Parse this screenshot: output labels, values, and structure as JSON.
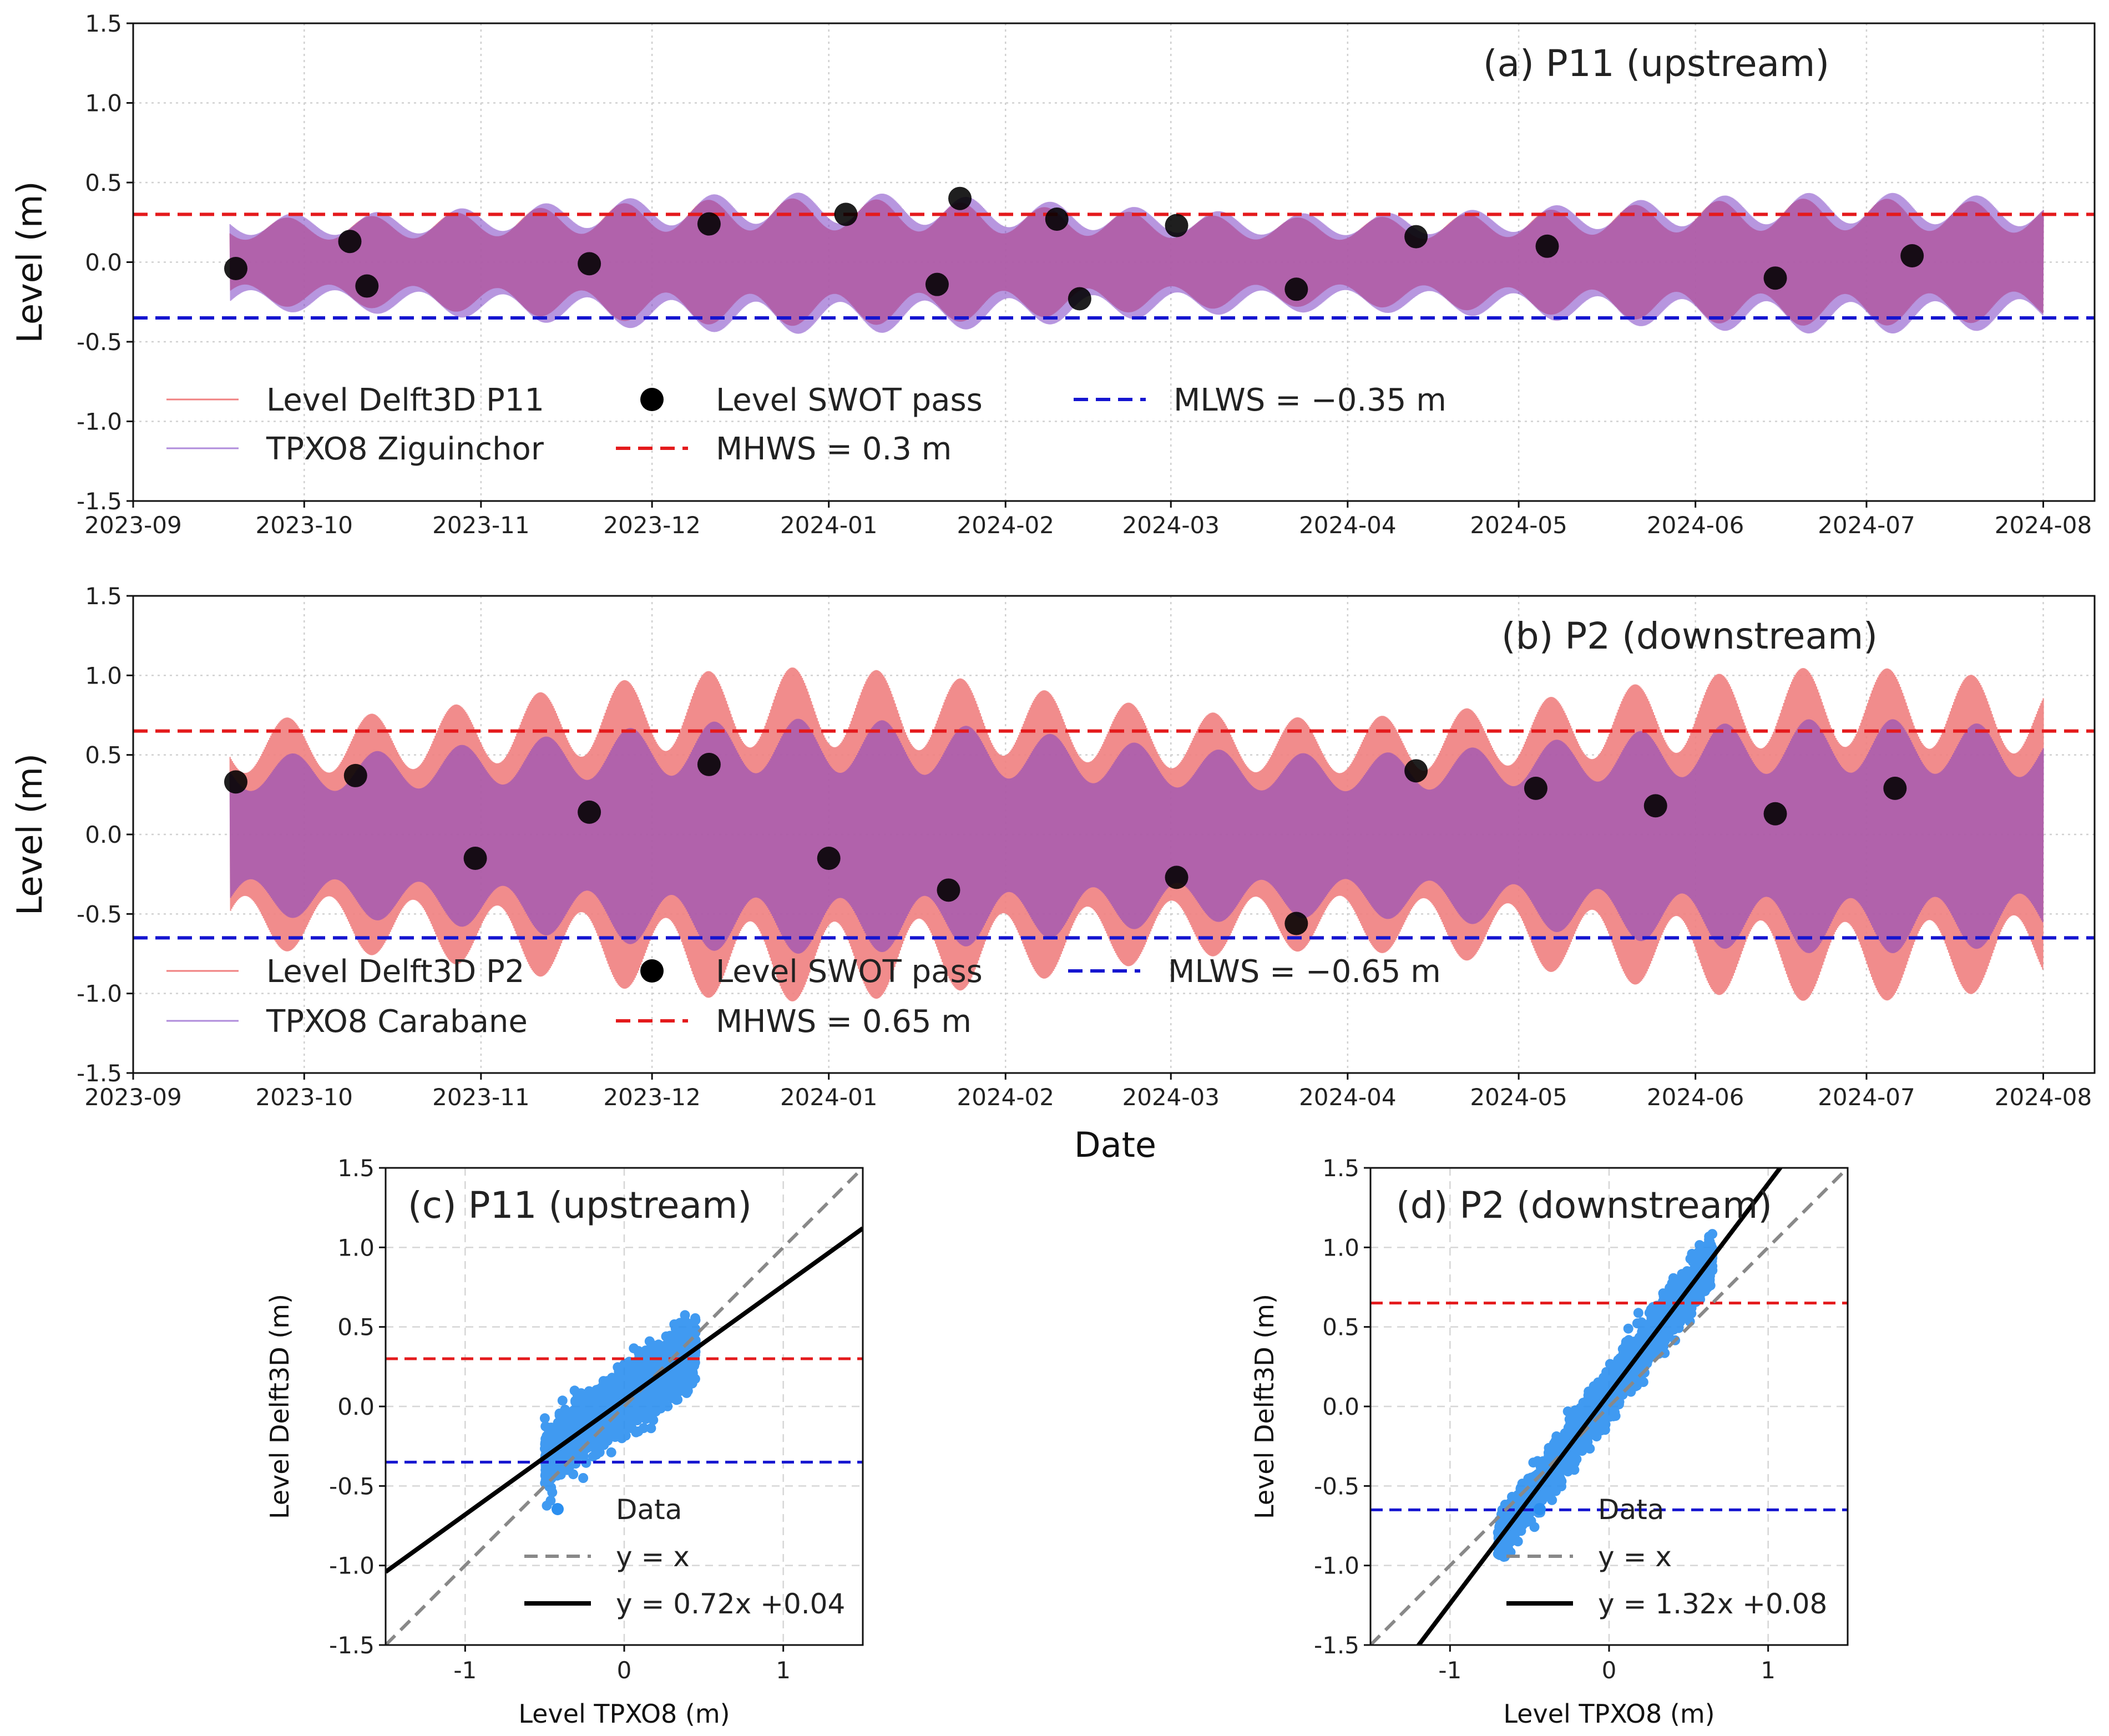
{
  "figure": {
    "xlabel_shared": "Date"
  },
  "colors": {
    "delft": "#f08080",
    "tpxo": "#7b3fc4",
    "swot": "#000000",
    "mhws": "#e41a1c",
    "mlws": "#1515d0",
    "scatter": "#2b8ff0",
    "identity": "#888888",
    "fit": "#000000"
  },
  "chart_data": [
    {
      "type": "line",
      "panel": "a",
      "title": "(a) P11 (upstream)",
      "xlabel": "",
      "ylabel": "Level (m)",
      "x_ticks": [
        "2023-09",
        "2023-10",
        "2023-11",
        "2023-12",
        "2024-01",
        "2024-02",
        "2024-03",
        "2024-04",
        "2024-05",
        "2024-06",
        "2024-07",
        "2024-08"
      ],
      "y_ticks": [
        "-1.5",
        "-1.0",
        "-0.5",
        "0.0",
        "0.5",
        "1.0",
        "1.5"
      ],
      "xlim": [
        "2023-09-01",
        "2024-08-10"
      ],
      "ylim": [
        -1.5,
        1.5
      ],
      "grid": true,
      "legend_position": "lower-left",
      "time_series": {
        "start": "2023-09-18",
        "end": "2024-08-01",
        "delft_amplitude_range": [
          0.2,
          0.4
        ],
        "tpxo_amplitude_range": [
          0.25,
          0.45
        ]
      },
      "series": [
        {
          "name": "Level Delft3D P11",
          "kind": "line"
        },
        {
          "name": "TPXO8 Ziguinchor",
          "kind": "line"
        },
        {
          "name": "Level SWOT pass",
          "kind": "scatter",
          "x": [
            "2023-09-19",
            "2023-10-09",
            "2023-10-12",
            "2023-11-20",
            "2023-12-11",
            "2024-01-04",
            "2024-01-20",
            "2024-01-24",
            "2024-02-10",
            "2024-02-14",
            "2024-03-02",
            "2024-03-23",
            "2024-04-13",
            "2024-05-06",
            "2024-06-15",
            "2024-07-09"
          ],
          "y": [
            -0.04,
            0.13,
            -0.15,
            -0.01,
            0.24,
            0.3,
            -0.14,
            0.4,
            0.27,
            -0.23,
            0.23,
            -0.17,
            0.16,
            0.1,
            -0.1,
            0.04
          ]
        },
        {
          "name": "MHWS = 0.3 m",
          "kind": "hline",
          "y": 0.3
        },
        {
          "name": "MLWS = −0.35 m",
          "kind": "hline",
          "y": -0.35
        }
      ]
    },
    {
      "type": "line",
      "panel": "b",
      "title": "(b) P2 (downstream)",
      "xlabel": "Date",
      "ylabel": "Level (m)",
      "x_ticks": [
        "2023-09",
        "2023-10",
        "2023-11",
        "2023-12",
        "2024-01",
        "2024-02",
        "2024-03",
        "2024-04",
        "2024-05",
        "2024-06",
        "2024-07",
        "2024-08"
      ],
      "y_ticks": [
        "-1.5",
        "-1.0",
        "-0.5",
        "0.0",
        "0.5",
        "1.0",
        "1.5"
      ],
      "xlim": [
        "2023-09-01",
        "2024-08-10"
      ],
      "ylim": [
        -1.5,
        1.5
      ],
      "grid": true,
      "legend_position": "lower-left",
      "time_series": {
        "start": "2023-09-18",
        "end": "2024-08-01",
        "delft_amplitude_range": [
          0.55,
          1.05
        ],
        "tpxo_amplitude_range": [
          0.4,
          0.75
        ]
      },
      "series": [
        {
          "name": "Level Delft3D P2",
          "kind": "line"
        },
        {
          "name": "TPXO8 Carabane",
          "kind": "line"
        },
        {
          "name": "Level SWOT pass",
          "kind": "scatter",
          "x": [
            "2023-09-19",
            "2023-10-10",
            "2023-10-31",
            "2023-11-20",
            "2023-12-11",
            "2024-01-01",
            "2024-01-22",
            "2024-03-02",
            "2024-03-23",
            "2024-04-13",
            "2024-05-04",
            "2024-05-25",
            "2024-06-15",
            "2024-07-06"
          ],
          "y": [
            0.33,
            0.37,
            -0.15,
            0.14,
            0.44,
            -0.15,
            -0.35,
            -0.27,
            -0.56,
            0.4,
            0.29,
            0.18,
            0.13,
            0.29
          ]
        },
        {
          "name": "MHWS = 0.65 m",
          "kind": "hline",
          "y": 0.65
        },
        {
          "name": "MLWS = −0.65 m",
          "kind": "hline",
          "y": -0.65
        }
      ]
    },
    {
      "type": "scatter",
      "panel": "c",
      "title": "(c) P11 (upstream)",
      "xlabel": "Level TPXO8 (m)",
      "ylabel": "Level Delft3D (m)",
      "x_ticks": [
        "-1",
        "0",
        "1"
      ],
      "y_ticks": [
        "-1.5",
        "-1.0",
        "-0.5",
        "0.0",
        "0.5",
        "1.0",
        "1.5"
      ],
      "xlim": [
        -1.5,
        1.5
      ],
      "ylim": [
        -1.5,
        1.5
      ],
      "grid": true,
      "legend_position": "lower-right",
      "cloud": {
        "x_range": [
          -0.5,
          0.45
        ],
        "slope": 0.72,
        "intercept": 0.04,
        "spread": 0.09
      },
      "series": [
        {
          "name": "Data",
          "kind": "scatter"
        },
        {
          "name": "y = x",
          "kind": "line",
          "slope": 1,
          "intercept": 0
        },
        {
          "name": "y = 0.72x +0.04",
          "kind": "line",
          "slope": 0.72,
          "intercept": 0.04
        },
        {
          "name": "MHWS",
          "kind": "hline",
          "y": 0.3
        },
        {
          "name": "MLWS",
          "kind": "hline",
          "y": -0.35
        }
      ]
    },
    {
      "type": "scatter",
      "panel": "d",
      "title": "(d) P2 (downstream)",
      "xlabel": "Level TPXO8 (m)",
      "ylabel": "Level Delft3D (m)",
      "x_ticks": [
        "-1",
        "0",
        "1"
      ],
      "y_ticks": [
        "-1.5",
        "-1.0",
        "-0.5",
        "0.0",
        "0.5",
        "1.0",
        "1.5"
      ],
      "xlim": [
        -1.5,
        1.5
      ],
      "ylim": [
        -1.5,
        1.5
      ],
      "grid": true,
      "legend_position": "lower-right",
      "cloud": {
        "x_range": [
          -0.7,
          0.65
        ],
        "slope": 1.32,
        "intercept": 0.08,
        "spread": 0.07
      },
      "series": [
        {
          "name": "Data",
          "kind": "scatter"
        },
        {
          "name": "y = x",
          "kind": "line",
          "slope": 1,
          "intercept": 0
        },
        {
          "name": "y = 1.32x +0.08",
          "kind": "line",
          "slope": 1.32,
          "intercept": 0.08
        },
        {
          "name": "MHWS",
          "kind": "hline",
          "y": 0.65
        },
        {
          "name": "MLWS",
          "kind": "hline",
          "y": -0.65
        }
      ]
    }
  ]
}
